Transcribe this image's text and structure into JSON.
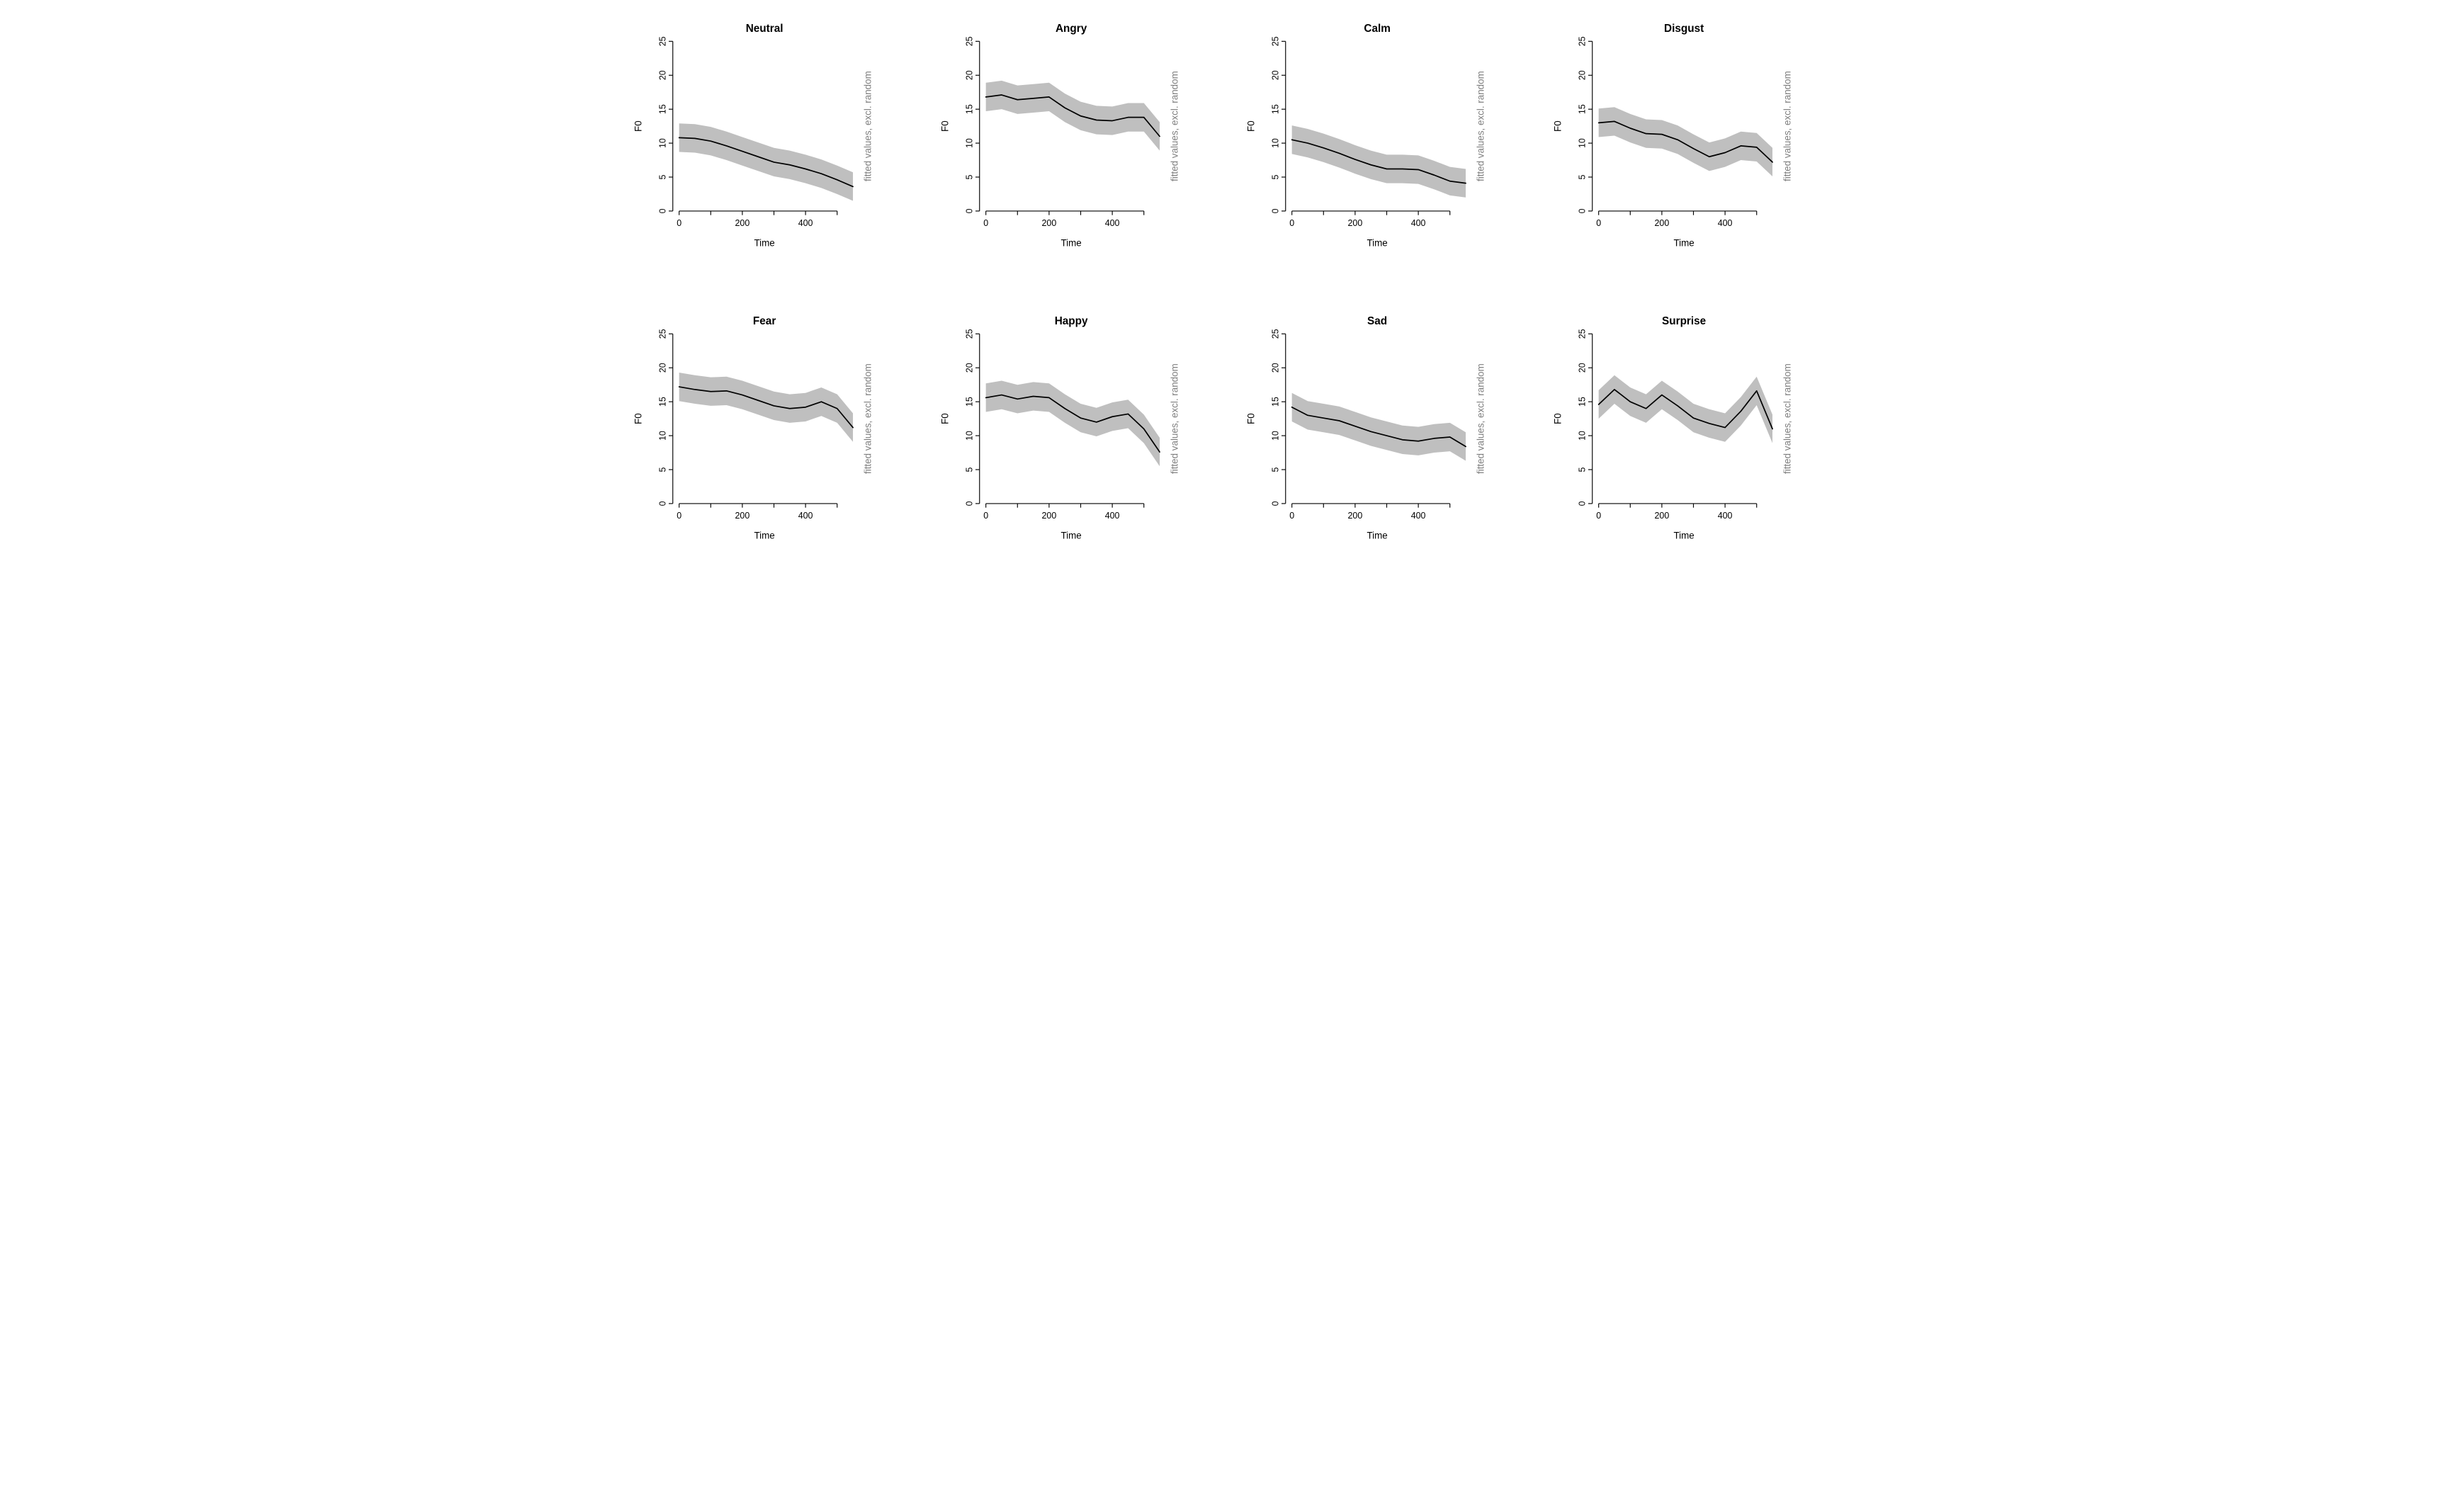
{
  "layout": {
    "rows": 2,
    "cols": 4,
    "aspect_ratio": 1.0,
    "background_color": "#ffffff"
  },
  "axis": {
    "xlabel": "Time",
    "ylabel": "F0",
    "secondary_label": "fitted values, excl. random",
    "xlim": [
      -20,
      560
    ],
    "ylim": [
      0,
      25
    ],
    "xticks": [
      0,
      100,
      200,
      300,
      400,
      500
    ],
    "xtick_labels": [
      "0",
      "",
      "200",
      "",
      "400",
      ""
    ],
    "yticks": [
      0,
      5,
      10,
      15,
      20,
      25
    ],
    "ytick_labels": [
      "0",
      "5",
      "10",
      "15",
      "20",
      "25"
    ],
    "tick_fontsize": 13,
    "label_fontsize": 14,
    "title_fontsize": 16,
    "title_fontweight": "bold",
    "axis_color": "#000000",
    "tick_color": "#000000",
    "text_color": "#000000",
    "secondary_text_color": "#808080",
    "line_color": "#000000",
    "line_width": 1.8,
    "band_color": "#bfbfbf",
    "band_opacity": 1.0,
    "band_half_width": 2.1
  },
  "panels": [
    {
      "title": "Neutral",
      "x": [
        0,
        50,
        100,
        150,
        200,
        250,
        300,
        350,
        400,
        450,
        500,
        550
      ],
      "y": [
        10.8,
        10.7,
        10.3,
        9.6,
        8.8,
        8.0,
        7.2,
        6.8,
        6.2,
        5.5,
        4.6,
        3.6
      ]
    },
    {
      "title": "Angry",
      "x": [
        0,
        50,
        100,
        150,
        200,
        250,
        300,
        350,
        400,
        450,
        500,
        550
      ],
      "y": [
        16.8,
        17.1,
        16.4,
        16.6,
        16.8,
        15.2,
        14.0,
        13.4,
        13.3,
        13.8,
        13.8,
        11.0
      ]
    },
    {
      "title": "Calm",
      "x": [
        0,
        50,
        100,
        150,
        200,
        250,
        300,
        350,
        400,
        450,
        500,
        550
      ],
      "y": [
        10.5,
        10.0,
        9.3,
        8.5,
        7.6,
        6.8,
        6.2,
        6.2,
        6.1,
        5.3,
        4.4,
        4.1
      ]
    },
    {
      "title": "Disgust",
      "x": [
        0,
        50,
        100,
        150,
        200,
        250,
        300,
        350,
        400,
        450,
        500,
        550
      ],
      "y": [
        13.0,
        13.2,
        12.2,
        11.4,
        11.3,
        10.5,
        9.2,
        8.0,
        8.6,
        9.6,
        9.4,
        7.2
      ]
    },
    {
      "title": "Fear",
      "x": [
        0,
        50,
        100,
        150,
        200,
        250,
        300,
        350,
        400,
        450,
        500,
        550
      ],
      "y": [
        17.2,
        16.8,
        16.5,
        16.6,
        16.0,
        15.2,
        14.4,
        14.0,
        14.2,
        15.0,
        14.0,
        11.2
      ]
    },
    {
      "title": "Happy",
      "x": [
        0,
        50,
        100,
        150,
        200,
        250,
        300,
        350,
        400,
        450,
        500,
        550
      ],
      "y": [
        15.6,
        16.0,
        15.4,
        15.8,
        15.6,
        14.0,
        12.6,
        12.0,
        12.8,
        13.2,
        11.0,
        7.6
      ]
    },
    {
      "title": "Sad",
      "x": [
        0,
        50,
        100,
        150,
        200,
        250,
        300,
        350,
        400,
        450,
        500,
        550
      ],
      "y": [
        14.2,
        13.0,
        12.6,
        12.2,
        11.4,
        10.6,
        10.0,
        9.4,
        9.2,
        9.6,
        9.8,
        8.4
      ]
    },
    {
      "title": "Surprise",
      "x": [
        0,
        50,
        100,
        150,
        200,
        250,
        300,
        350,
        400,
        450,
        500,
        550
      ],
      "y": [
        14.6,
        16.8,
        15.0,
        14.0,
        16.0,
        14.4,
        12.6,
        11.8,
        11.2,
        13.6,
        16.6,
        11.0
      ]
    }
  ]
}
